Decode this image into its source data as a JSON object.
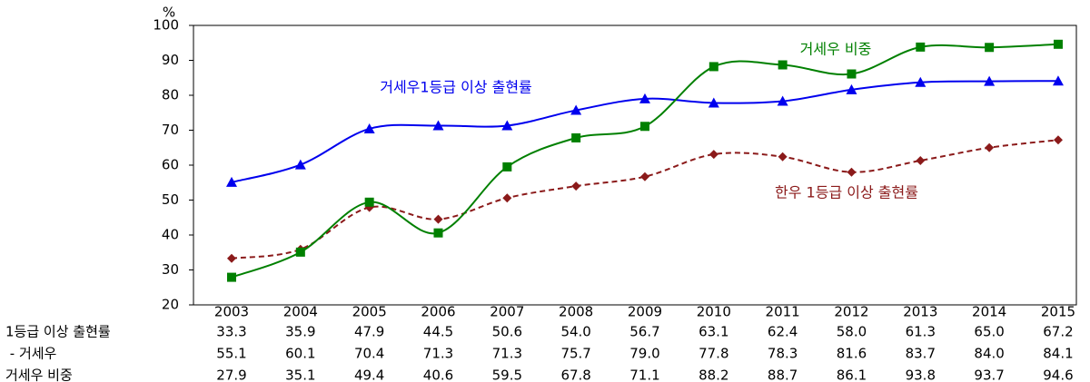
{
  "chart_data": {
    "type": "line",
    "y_label": "%",
    "categories": [
      "2003",
      "2004",
      "2005",
      "2006",
      "2007",
      "2008",
      "2009",
      "2010",
      "2011",
      "2012",
      "2013",
      "2014",
      "2015"
    ],
    "ylim": [
      20,
      100
    ],
    "yticks": [
      20,
      30,
      40,
      50,
      60,
      70,
      80,
      90,
      100
    ],
    "series": [
      {
        "name": "한우 1등급 이상 출현률",
        "table_label": "1등급 이상 출현률",
        "color": "#8b1a1a",
        "dashed": true,
        "marker": "diamond",
        "values": [
          33.3,
          35.9,
          47.9,
          44.5,
          50.6,
          54.0,
          56.7,
          63.1,
          62.4,
          58.0,
          61.3,
          65.0,
          67.2
        ],
        "value_labels": [
          "33.3",
          "35.9",
          "47.9",
          "44.5",
          "50.6",
          "54.0",
          "56.7",
          "63.1",
          "62.4",
          "58.0",
          "61.3",
          "65.0",
          "67.2"
        ]
      },
      {
        "name": "거세우1등급 이상 출현률",
        "table_label": " - 거세우",
        "color": "#0000ee",
        "dashed": false,
        "marker": "triangle",
        "values": [
          55.1,
          60.1,
          70.4,
          71.3,
          71.3,
          75.7,
          79.0,
          77.8,
          78.3,
          81.6,
          83.7,
          84.0,
          84.1
        ],
        "value_labels": [
          "55.1",
          "60.1",
          "70.4",
          "71.3",
          "71.3",
          "75.7",
          "79.0",
          "77.8",
          "78.3",
          "81.6",
          "83.7",
          "84.0",
          "84.1"
        ]
      },
      {
        "name": "거세우 비중",
        "table_label": "거세우 비중",
        "color": "#008000",
        "dashed": false,
        "marker": "square",
        "values": [
          27.9,
          35.1,
          49.4,
          40.6,
          59.5,
          67.8,
          71.1,
          88.2,
          88.7,
          86.1,
          93.8,
          93.7,
          94.6
        ],
        "value_labels": [
          "27.9",
          "35.1",
          "49.4",
          "40.6",
          "59.5",
          "67.8",
          "71.1",
          "88.2",
          "88.7",
          "86.1",
          "93.8",
          "93.7",
          "94.6"
        ]
      }
    ]
  }
}
